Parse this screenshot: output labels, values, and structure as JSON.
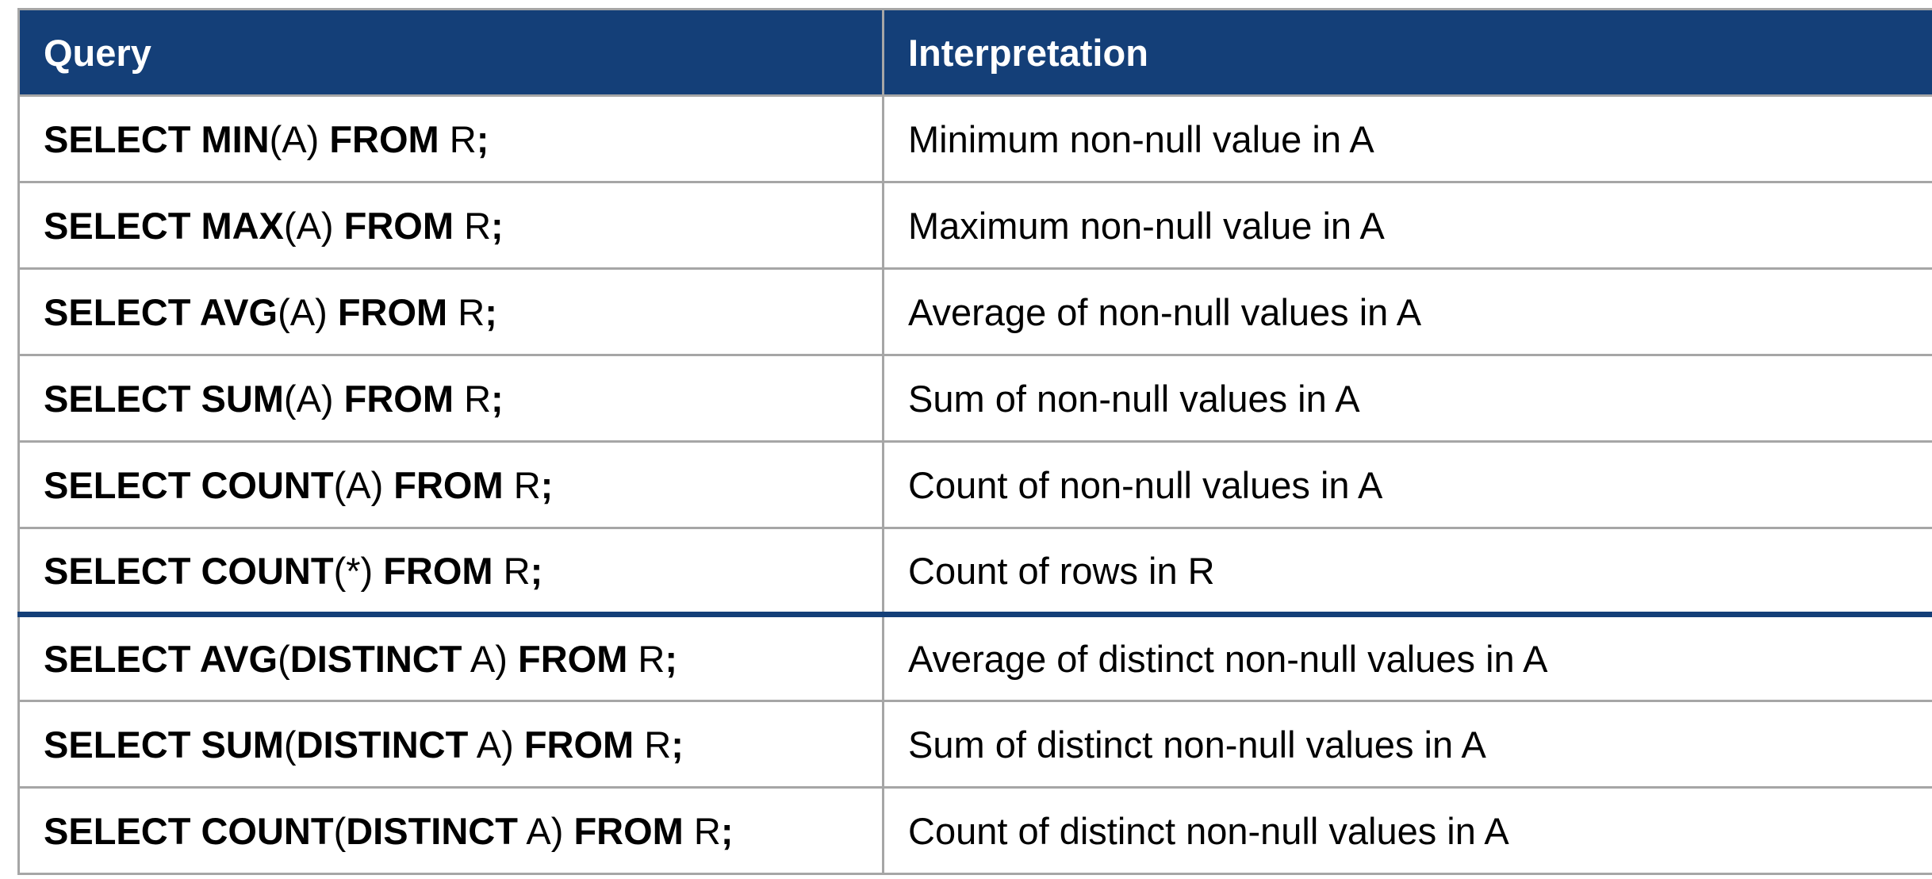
{
  "header": {
    "query": "Query",
    "interpretation": "Interpretation"
  },
  "rows": [
    {
      "query": [
        {
          "t": "SELECT MIN",
          "b": true
        },
        {
          "t": "(A) ",
          "b": false
        },
        {
          "t": "FROM",
          "b": true
        },
        {
          "t": " R",
          "b": false
        },
        {
          "t": ";",
          "b": true
        }
      ],
      "interpretation": "Minimum non-null value in A"
    },
    {
      "query": [
        {
          "t": "SELECT MAX",
          "b": true
        },
        {
          "t": "(A) ",
          "b": false
        },
        {
          "t": "FROM",
          "b": true
        },
        {
          "t": " R",
          "b": false
        },
        {
          "t": ";",
          "b": true
        }
      ],
      "interpretation": "Maximum non-null value in A"
    },
    {
      "query": [
        {
          "t": "SELECT AVG",
          "b": true
        },
        {
          "t": "(A) ",
          "b": false
        },
        {
          "t": "FROM",
          "b": true
        },
        {
          "t": " R",
          "b": false
        },
        {
          "t": ";",
          "b": true
        }
      ],
      "interpretation": "Average of non-null values in A"
    },
    {
      "query": [
        {
          "t": "SELECT SUM",
          "b": true
        },
        {
          "t": "(A) ",
          "b": false
        },
        {
          "t": "FROM",
          "b": true
        },
        {
          "t": " R",
          "b": false
        },
        {
          "t": ";",
          "b": true
        }
      ],
      "interpretation": "Sum of non-null values in A"
    },
    {
      "query": [
        {
          "t": "SELECT COUNT",
          "b": true
        },
        {
          "t": "(A) ",
          "b": false
        },
        {
          "t": "FROM",
          "b": true
        },
        {
          "t": " R",
          "b": false
        },
        {
          "t": ";",
          "b": true
        }
      ],
      "interpretation": "Count of non-null values in A"
    },
    {
      "query": [
        {
          "t": "SELECT COUNT",
          "b": true
        },
        {
          "t": "(*) ",
          "b": false
        },
        {
          "t": "FROM",
          "b": true
        },
        {
          "t": " R",
          "b": false
        },
        {
          "t": ";",
          "b": true
        }
      ],
      "interpretation": "Count of rows in R"
    },
    {
      "query": [
        {
          "t": "SELECT AVG",
          "b": true
        },
        {
          "t": "(",
          "b": false
        },
        {
          "t": "DISTINCT",
          "b": true
        },
        {
          "t": " A) ",
          "b": false
        },
        {
          "t": "FROM",
          "b": true
        },
        {
          "t": " R",
          "b": false
        },
        {
          "t": ";",
          "b": true
        }
      ],
      "interpretation": "Average of distinct non-null values in A"
    },
    {
      "query": [
        {
          "t": "SELECT SUM",
          "b": true
        },
        {
          "t": "(",
          "b": false
        },
        {
          "t": "DISTINCT",
          "b": true
        },
        {
          "t": " A) ",
          "b": false
        },
        {
          "t": "FROM",
          "b": true
        },
        {
          "t": " R",
          "b": false
        },
        {
          "t": ";",
          "b": true
        }
      ],
      "interpretation": "Sum of distinct non-null values in A"
    },
    {
      "query": [
        {
          "t": "SELECT COUNT",
          "b": true
        },
        {
          "t": "(",
          "b": false
        },
        {
          "t": "DISTINCT",
          "b": true
        },
        {
          "t": " A) ",
          "b": false
        },
        {
          "t": "FROM",
          "b": true
        },
        {
          "t": " R",
          "b": false
        },
        {
          "t": ";",
          "b": true
        }
      ],
      "interpretation": "Count of distinct non-null values in A"
    }
  ],
  "colors": {
    "header_background": "#143f78",
    "header_text": "#ffffff",
    "grid_line": "#a6a6a6",
    "group_separator": "#143f78"
  }
}
